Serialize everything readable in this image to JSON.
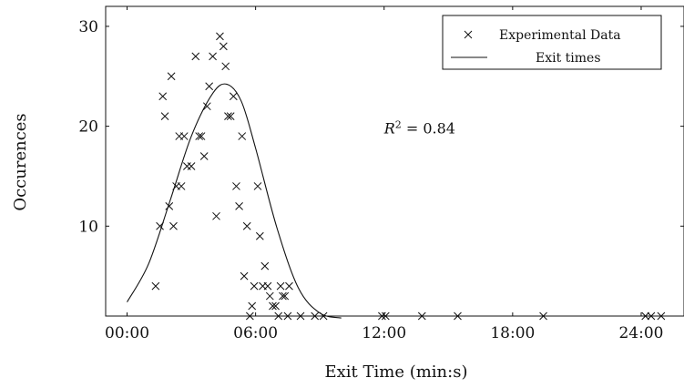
{
  "chart_data": {
    "type": "scatter",
    "xlabel": "Exit Time (min:s)",
    "ylabel": "Occurences",
    "xlim": [
      0,
      1620
    ],
    "ylim": [
      1,
      32
    ],
    "x_ticks": [
      {
        "value": 60,
        "label": "00:00"
      },
      {
        "value": 420,
        "label": "06:00"
      },
      {
        "value": 780,
        "label": "12:00"
      },
      {
        "value": 1140,
        "label": "18:00"
      },
      {
        "value": 1500,
        "label": "24:00"
      }
    ],
    "y_ticks": [
      10,
      20,
      30
    ],
    "legend_position": "top-right",
    "annotation": {
      "base": "R",
      "exponent": "2",
      "rest": " = 0.84",
      "x": 780,
      "y": 19.3
    },
    "series": [
      {
        "name": "Experimental Data",
        "kind": "scatter",
        "marker": "x",
        "points": [
          [
            140,
            4
          ],
          [
            152,
            10
          ],
          [
            160,
            23
          ],
          [
            166,
            21
          ],
          [
            178,
            12
          ],
          [
            184,
            25
          ],
          [
            190,
            10
          ],
          [
            198,
            14
          ],
          [
            206,
            19
          ],
          [
            212,
            14
          ],
          [
            220,
            19
          ],
          [
            228,
            16
          ],
          [
            240,
            16
          ],
          [
            252,
            27
          ],
          [
            262,
            19
          ],
          [
            268,
            19
          ],
          [
            276,
            17
          ],
          [
            284,
            22
          ],
          [
            290,
            24
          ],
          [
            300,
            27
          ],
          [
            310,
            11
          ],
          [
            320,
            29
          ],
          [
            330,
            28
          ],
          [
            336,
            26
          ],
          [
            343,
            21
          ],
          [
            350,
            21
          ],
          [
            358,
            23
          ],
          [
            366,
            14
          ],
          [
            374,
            12
          ],
          [
            382,
            19
          ],
          [
            388,
            5
          ],
          [
            396,
            10
          ],
          [
            404,
            1
          ],
          [
            410,
            2
          ],
          [
            416,
            4
          ],
          [
            426,
            14
          ],
          [
            432,
            9
          ],
          [
            440,
            4
          ],
          [
            446,
            6
          ],
          [
            454,
            4
          ],
          [
            460,
            3
          ],
          [
            468,
            2
          ],
          [
            476,
            2
          ],
          [
            484,
            1
          ],
          [
            490,
            4
          ],
          [
            496,
            3
          ],
          [
            502,
            3
          ],
          [
            510,
            1
          ],
          [
            514,
            4
          ],
          [
            546,
            1
          ],
          [
            586,
            1
          ],
          [
            610,
            1
          ],
          [
            774,
            1
          ],
          [
            784,
            1
          ],
          [
            886,
            1
          ],
          [
            986,
            1
          ],
          [
            1226,
            1
          ],
          [
            1512,
            1
          ],
          [
            1528,
            1
          ],
          [
            1556,
            1
          ]
        ]
      },
      {
        "name": "Exit times",
        "kind": "line",
        "points": [
          [
            60,
            2.4
          ],
          [
            120,
            6.2
          ],
          [
            180,
            12.5
          ],
          [
            240,
            19.0
          ],
          [
            300,
            23.3
          ],
          [
            340,
            24.2
          ],
          [
            380,
            22.5
          ],
          [
            420,
            17.8
          ],
          [
            480,
            9.8
          ],
          [
            540,
            3.8
          ],
          [
            600,
            1.3
          ],
          [
            660,
            0.8
          ]
        ]
      }
    ]
  }
}
